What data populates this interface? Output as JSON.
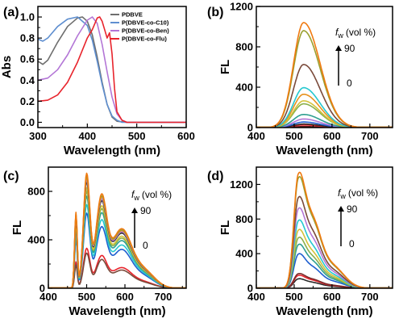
{
  "chart_data": [
    {
      "panel": "(a)",
      "type": "line",
      "xlabel": "Wavelength (nm)",
      "ylabel": "Abs",
      "xlim": [
        300,
        600
      ],
      "ylim": [
        -0.05,
        1.1
      ],
      "xticks": [
        300,
        400,
        500,
        600
      ],
      "yticks": [
        0.0,
        0.2,
        0.4,
        0.6,
        0.8,
        1.0
      ],
      "ytick_labels": [
        "0.0",
        "0.2",
        "0.4",
        "0.6",
        "0.8",
        "1.0"
      ],
      "legend_position": "top-right",
      "series": [
        {
          "name": "PDBVE",
          "color": "#6e6e6e",
          "x": [
            300,
            310,
            320,
            340,
            360,
            380,
            390,
            400,
            410,
            420,
            430,
            440,
            450,
            460,
            480,
            500,
            600
          ],
          "y": [
            0.58,
            0.55,
            0.59,
            0.76,
            0.91,
            0.99,
            1.0,
            0.96,
            0.83,
            0.62,
            0.38,
            0.17,
            0.05,
            0.01,
            0.0,
            0.0,
            0.0
          ]
        },
        {
          "name": "P(DBVE-co-C10)",
          "color": "#5f8fd0",
          "x": [
            300,
            310,
            320,
            340,
            360,
            380,
            400,
            410,
            420,
            430,
            440,
            450,
            460,
            470,
            480,
            500,
            600
          ],
          "y": [
            0.79,
            0.77,
            0.8,
            0.91,
            0.98,
            1.0,
            0.92,
            0.78,
            0.58,
            0.36,
            0.17,
            0.06,
            0.02,
            0.0,
            0.0,
            0.0,
            0.0
          ]
        },
        {
          "name": "P(DBVE-co-Ben)",
          "color": "#b376d6",
          "x": [
            300,
            320,
            340,
            360,
            380,
            400,
            410,
            420,
            430,
            440,
            450,
            460,
            470,
            480,
            500,
            600
          ],
          "y": [
            0.4,
            0.42,
            0.5,
            0.64,
            0.82,
            0.97,
            1.0,
            0.94,
            0.74,
            0.48,
            0.24,
            0.08,
            0.02,
            0.0,
            0.0,
            0.0
          ]
        },
        {
          "name": "P(DBVE-co-Flu)",
          "color": "#e8242c",
          "x": [
            300,
            320,
            340,
            360,
            380,
            400,
            410,
            420,
            425,
            430,
            435,
            440,
            445,
            450,
            455,
            460,
            470,
            480,
            500,
            600
          ],
          "y": [
            0.2,
            0.21,
            0.26,
            0.38,
            0.57,
            0.8,
            0.88,
            0.99,
            1.0,
            0.96,
            0.88,
            0.8,
            0.85,
            0.65,
            0.32,
            0.1,
            0.02,
            0.0,
            0.0,
            0.0
          ]
        }
      ]
    },
    {
      "panel": "(b)",
      "type": "line",
      "xlabel": "Wavelength (nm)",
      "ylabel": "FL",
      "xlim": [
        400,
        760
      ],
      "ylim": [
        0,
        1200
      ],
      "xticks": [
        400,
        500,
        600,
        700
      ],
      "yticks": [
        0,
        400,
        800,
        1200
      ],
      "peak": 525,
      "left_width": 38,
      "right_width": 62,
      "series": [
        {
          "color": "#5c1a1a",
          "peak_value": 10
        },
        {
          "color": "#e8242c",
          "peak_value": 25
        },
        {
          "color": "#2a2a2a",
          "peak_value": 35
        },
        {
          "color": "#1f5fd0",
          "peak_value": 55
        },
        {
          "color": "#b376d6",
          "peak_value": 85
        },
        {
          "color": "#2e9f90",
          "peak_value": 130
        },
        {
          "color": "#8ab04a",
          "peak_value": 235
        },
        {
          "color": "#d4c23a",
          "peak_value": 265
        },
        {
          "color": "#e8921e",
          "peak_value": 330
        },
        {
          "color": "#26c8d0",
          "peak_value": 395
        },
        {
          "color": "#7a4a3a",
          "peak_value": 625
        },
        {
          "color": "#9aa030",
          "peak_value": 960
        },
        {
          "color": "#f07a10",
          "peak_value": 1040
        }
      ]
    },
    {
      "panel": "(c)",
      "type": "line",
      "xlabel": "Wavelength (nm)",
      "ylabel": "FL",
      "xlim": [
        400,
        760
      ],
      "ylim": [
        0,
        1000
      ],
      "xticks": [
        400,
        500,
        600,
        700
      ],
      "yticks": [
        0,
        400,
        800
      ],
      "series": [
        {
          "color": "#e8242c",
          "peak_value": 330
        },
        {
          "color": "#7a4a3a",
          "peak_value": 290
        },
        {
          "color": "#1f5fd0",
          "peak_value": 620
        },
        {
          "color": "#26c8d0",
          "peak_value": 690
        },
        {
          "color": "#2e9f90",
          "peak_value": 760
        },
        {
          "color": "#8ab04a",
          "peak_value": 800
        },
        {
          "color": "#d4c23a",
          "peak_value": 830
        },
        {
          "color": "#2a2a2a",
          "peak_value": 880
        },
        {
          "color": "#b376d6",
          "peak_value": 900
        },
        {
          "color": "#e8921e",
          "peak_value": 920
        },
        {
          "color": "#9aa030",
          "peak_value": 930
        },
        {
          "color": "#f07a10",
          "peak_value": 950
        }
      ]
    },
    {
      "panel": "(d)",
      "type": "line",
      "xlabel": "Wavelength (nm)",
      "ylabel": "FL",
      "xlim": [
        400,
        760
      ],
      "ylim": [
        0,
        1400
      ],
      "xticks": [
        400,
        500,
        600,
        700
      ],
      "yticks": [
        0,
        400,
        800,
        1200
      ],
      "series": [
        {
          "color": "#2a2a2a",
          "peak_value": 110
        },
        {
          "color": "#e8242c",
          "peak_value": 150
        },
        {
          "color": "#7a2a2a",
          "peak_value": 170
        },
        {
          "color": "#1f5fd0",
          "peak_value": 400
        },
        {
          "color": "#2e9f90",
          "peak_value": 510
        },
        {
          "color": "#8ab04a",
          "peak_value": 590
        },
        {
          "color": "#d4c23a",
          "peak_value": 680
        },
        {
          "color": "#26c8d0",
          "peak_value": 790
        },
        {
          "color": "#b376d6",
          "peak_value": 930
        },
        {
          "color": "#7a4a3a",
          "peak_value": 1060
        },
        {
          "color": "#9aa030",
          "peak_value": 1290
        },
        {
          "color": "#f07a10",
          "peak_value": 1340
        }
      ]
    }
  ],
  "annotation": {
    "fw_symbol": "f",
    "fw_subscript": "w",
    "unit": "(vol %)",
    "top_value": "90",
    "bottom_value": "0"
  }
}
